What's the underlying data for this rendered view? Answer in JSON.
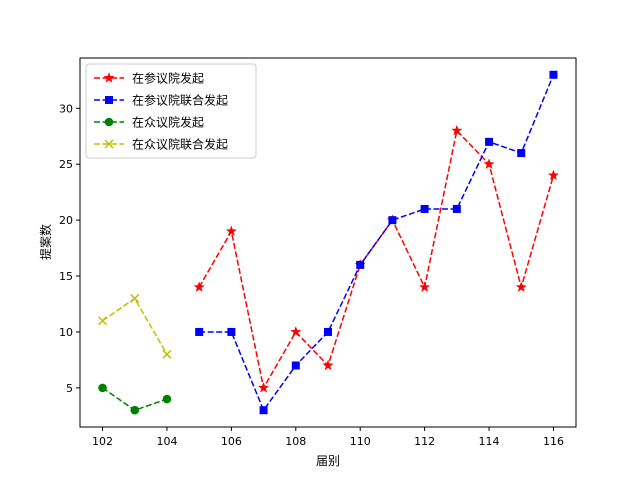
{
  "chart_data": {
    "type": "line",
    "title": "",
    "xlabel": "届别",
    "ylabel": "提案数",
    "xlim": [
      101.3,
      116.7
    ],
    "ylim": [
      1.5,
      34.5
    ],
    "xticks": [
      102,
      104,
      106,
      108,
      110,
      112,
      114,
      116
    ],
    "yticks": [
      5,
      10,
      15,
      20,
      25,
      30
    ],
    "xtick_labels": [
      "102",
      "104",
      "106",
      "108",
      "110",
      "112",
      "114",
      "116"
    ],
    "ytick_labels": [
      "5",
      "10",
      "15",
      "20",
      "25",
      "30"
    ],
    "grid": false,
    "legend_position": "top-left",
    "series": [
      {
        "name": "在参议院发起",
        "color": "#ff0000",
        "marker": "star",
        "line_style": "dashed",
        "x": [
          105,
          106,
          107,
          108,
          109,
          110,
          111,
          112,
          113,
          114,
          115,
          116
        ],
        "y": [
          14,
          19,
          5,
          10,
          7,
          16,
          20,
          14,
          28,
          25,
          14,
          24
        ]
      },
      {
        "name": "在参议院联合发起",
        "color": "#0000ff",
        "marker": "square",
        "line_style": "dashed",
        "x": [
          105,
          106,
          107,
          108,
          109,
          110,
          111,
          112,
          113,
          114,
          115,
          116
        ],
        "y": [
          10,
          10,
          3,
          7,
          10,
          16,
          20,
          21,
          21,
          27,
          26,
          33
        ]
      },
      {
        "name": "在众议院发起",
        "color": "#008000",
        "marker": "circle",
        "line_style": "dashed",
        "x": [
          102,
          103,
          104
        ],
        "y": [
          5,
          3,
          4
        ]
      },
      {
        "name": "在众议院联合发起",
        "color": "#bfbf00",
        "marker": "x",
        "line_style": "dashed",
        "x": [
          102,
          103,
          104
        ],
        "y": [
          11,
          13,
          8
        ]
      }
    ]
  }
}
